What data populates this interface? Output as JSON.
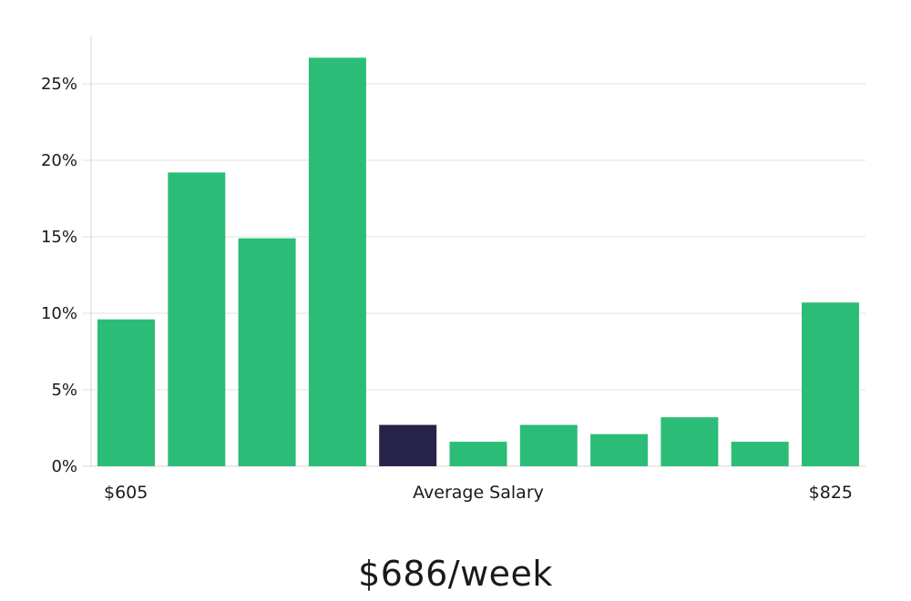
{
  "chart_data": {
    "type": "bar",
    "values": [
      9.6,
      19.2,
      14.9,
      26.7,
      2.7,
      1.6,
      2.7,
      2.1,
      3.2,
      1.6,
      10.7
    ],
    "highlight_index": 4,
    "ylim": [
      0,
      28
    ],
    "y_ticks": [
      0,
      5,
      10,
      15,
      20,
      25
    ],
    "y_tick_labels": [
      "0%",
      "5%",
      "10%",
      "15%",
      "20%",
      "25%"
    ],
    "x_min_label": "$605",
    "x_max_label": "$825",
    "xlabel": "Average Salary",
    "grid": true,
    "colors": {
      "bar": "#2bbd77",
      "highlight": "#27244a",
      "grid": "#e2e2e2",
      "axis": "#d6d6d6"
    }
  },
  "headline": "$686/week"
}
